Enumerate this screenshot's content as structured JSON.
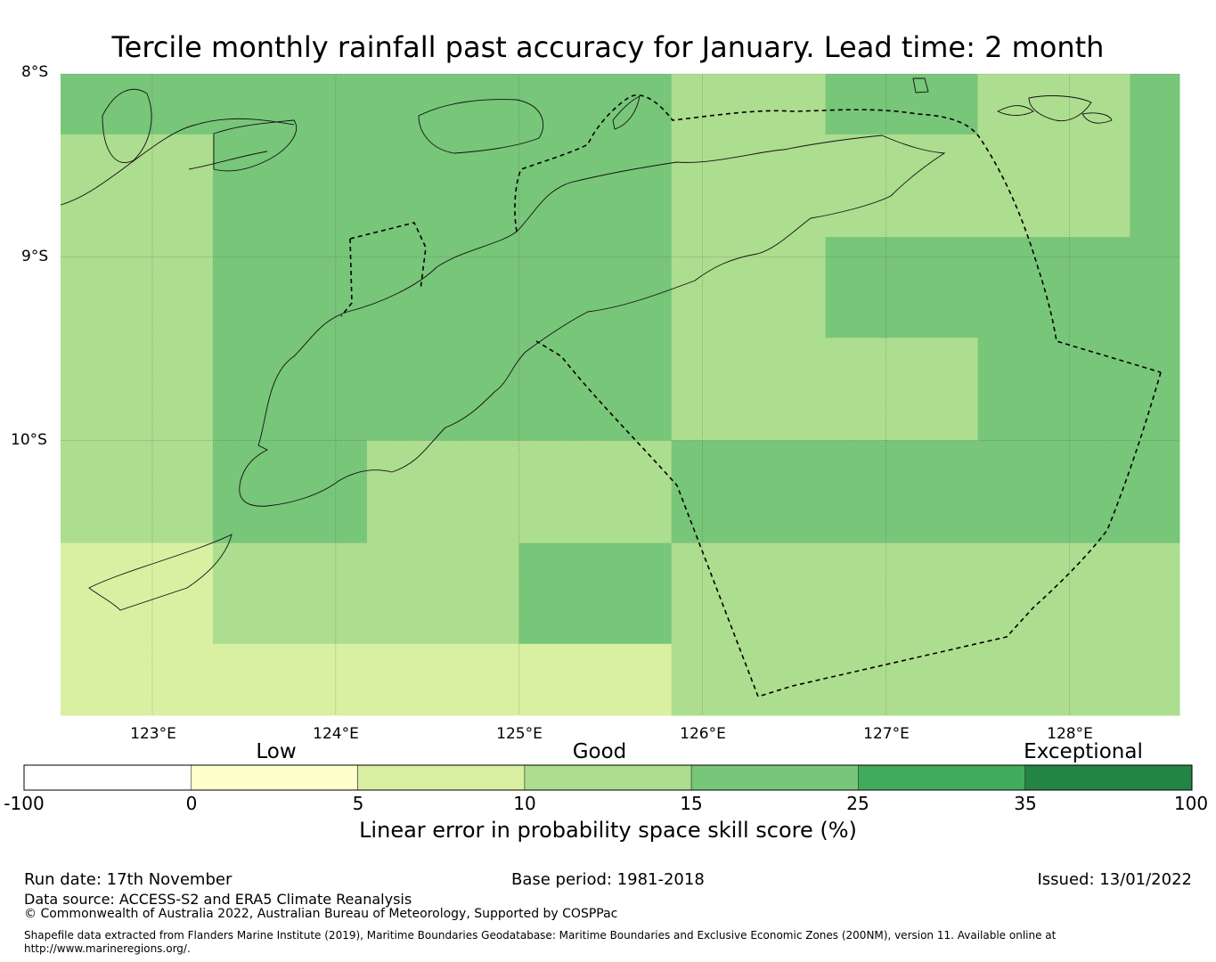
{
  "title": "Tercile monthly rainfall past accuracy for January. Lead time: 2 month",
  "map": {
    "lat_labels": [
      "8°S",
      "9°S",
      "10°S"
    ],
    "lon_labels": [
      "123°E",
      "124°E",
      "125°E",
      "126°E",
      "127°E",
      "128°E"
    ],
    "colors": {
      "c0": "#ffffff",
      "c1": "#ffffcc",
      "c2": "#d9f0a3",
      "c3": "#addd8e",
      "c4": "#78c679",
      "c5": "#41ab5d",
      "c6": "#238443"
    },
    "grid_cells": [
      {
        "lon": [
          122.5,
          123.33
        ],
        "lat": [
          -8.0,
          -8.33
        ],
        "cls": 4
      },
      {
        "lon": [
          122.5,
          123.33
        ],
        "lat": [
          -8.33,
          -10.56
        ],
        "cls": 3
      },
      {
        "lon": [
          122.5,
          123.33
        ],
        "lat": [
          -10.56,
          -11.5
        ],
        "cls": 2
      },
      {
        "lon": [
          123.33,
          125.83
        ],
        "lat": [
          -8.0,
          -10.0
        ],
        "cls": 4
      },
      {
        "lon": [
          123.33,
          124.17
        ],
        "lat": [
          -10.0,
          -10.56
        ],
        "cls": 4
      },
      {
        "lon": [
          124.17,
          125.83
        ],
        "lat": [
          -10.0,
          -10.56
        ],
        "cls": 3
      },
      {
        "lon": [
          123.33,
          125.0
        ],
        "lat": [
          -10.56,
          -11.11
        ],
        "cls": 3
      },
      {
        "lon": [
          125.0,
          125.83
        ],
        "lat": [
          -10.56,
          -11.11
        ],
        "cls": 4
      },
      {
        "lon": [
          123.33,
          125.83
        ],
        "lat": [
          -11.11,
          -11.5
        ],
        "cls": 2
      },
      {
        "lon": [
          125.83,
          126.67
        ],
        "lat": [
          -8.0,
          -10.0
        ],
        "cls": 3
      },
      {
        "lon": [
          126.67,
          127.5
        ],
        "lat": [
          -8.0,
          -8.33
        ],
        "cls": 4
      },
      {
        "lon": [
          127.5,
          128.33
        ],
        "lat": [
          -8.0,
          -8.89
        ],
        "cls": 3
      },
      {
        "lon": [
          126.67,
          127.5
        ],
        "lat": [
          -8.33,
          -8.89
        ],
        "cls": 3
      },
      {
        "lon": [
          128.33,
          128.6
        ],
        "lat": [
          -8.0,
          -8.89
        ],
        "cls": 4
      },
      {
        "lon": [
          126.67,
          128.6
        ],
        "lat": [
          -8.89,
          -9.44
        ],
        "cls": 4
      },
      {
        "lon": [
          126.67,
          127.5
        ],
        "lat": [
          -9.44,
          -10.0
        ],
        "cls": 3
      },
      {
        "lon": [
          127.5,
          128.6
        ],
        "lat": [
          -9.44,
          -10.0
        ],
        "cls": 4
      },
      {
        "lon": [
          125.83,
          128.6
        ],
        "lat": [
          -10.0,
          -10.56
        ],
        "cls": 4
      },
      {
        "lon": [
          125.83,
          128.6
        ],
        "lat": [
          -10.56,
          -11.5
        ],
        "cls": 3
      }
    ]
  },
  "colorbar": {
    "categories": [
      "Low",
      "Good",
      "Exceptional"
    ],
    "ticks": [
      "-100",
      "0",
      "5",
      "10",
      "15",
      "25",
      "35",
      "100"
    ],
    "label": "Linear error in probability space skill score (%)"
  },
  "footer": {
    "run_date": "Run date: 17th November",
    "base_period": "Base period: 1981-2018",
    "issued": "Issued: 13/01/2022",
    "data_source": "Data source: ACCESS-S2 and ERA5 Climate Reanalysis",
    "copyright": "© Commonwealth of Australia 2022, Australian Bureau of Meteorology, Supported by COSPPac",
    "shapefile_line1": "Shapefile data extracted from Flanders Marine Institute (2019), Maritime Boundaries Geodatabase: Maritime Boundaries and Exclusive Economic Zones (200NM), version 11. Available online at",
    "shapefile_line2": "http://www.marineregions.org/."
  }
}
